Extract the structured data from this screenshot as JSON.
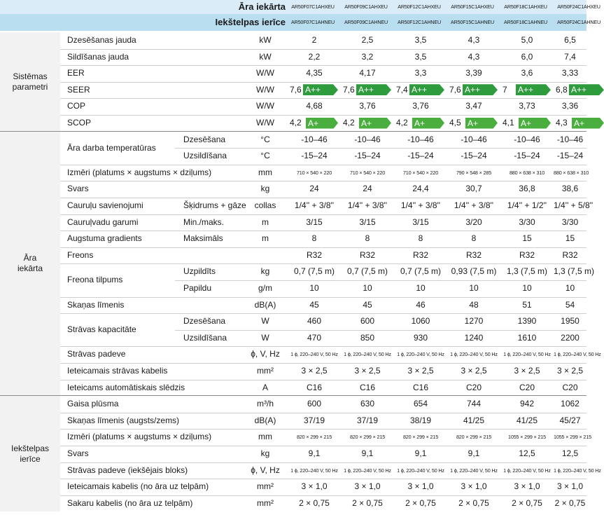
{
  "header": {
    "outdoor_label": "Āra iekārta",
    "indoor_label": "Iekštelpas ierīce",
    "outdoor_models": [
      "AR50F07C1AHXEU",
      "AR50F09C1AHXEU",
      "AR50F12C1AHXEU",
      "AR50F15C1AHXEU",
      "AR50F18C1AHXEU",
      "AR50F24C1AHXEU"
    ],
    "indoor_models": [
      "AR50F07C1AHNEU",
      "AR50F09C1AHNEU",
      "AR50F12C1AHNEU",
      "AR50F15C1AHNEU",
      "AR50F18C1AHNEU",
      "AR50F24C1AHNEU"
    ]
  },
  "groups": [
    {
      "label": "Sistēmas\nparametri"
    },
    {
      "label": "Āra\niekārta"
    },
    {
      "label": "Iekštelpas\nierīce"
    }
  ],
  "rows": [
    {
      "label": "Dzesēšanas jauda",
      "sub": "",
      "unit": "kW",
      "values": [
        "2",
        "2,5",
        "3,5",
        "4,3",
        "5,0",
        "6,5"
      ]
    },
    {
      "label": "Sildīšanas jauda",
      "sub": "",
      "unit": "kW",
      "values": [
        "2,2",
        "3,2",
        "3,5",
        "4,3",
        "6,0",
        "7,4"
      ]
    },
    {
      "label": "EER",
      "sub": "",
      "unit": "W/W",
      "values": [
        "4,35",
        "4,17",
        "3,3",
        "3,39",
        "3,6",
        "3,33"
      ]
    },
    {
      "label": "SEER",
      "sub": "",
      "unit": "W/W",
      "values": [
        "7,6",
        "7,6",
        "7,4",
        "7,6",
        "7",
        "6,8"
      ],
      "badges": [
        "A++",
        "A++",
        "A++",
        "A++",
        "A++",
        "A++"
      ]
    },
    {
      "label": "COP",
      "sub": "",
      "unit": "W/W",
      "values": [
        "4,68",
        "3,76",
        "3,76",
        "3,47",
        "3,73",
        "3,36"
      ]
    },
    {
      "label": "SCOP",
      "sub": "",
      "unit": "W/W",
      "values": [
        "4,2",
        "4,2",
        "4,2",
        "4,5",
        "4,1",
        "4,3"
      ],
      "badges": [
        "A+",
        "A+",
        "A+",
        "A+",
        "A+",
        "A+"
      ]
    },
    {
      "label": "Āra darba temperatūras",
      "sub": "Dzesēšana",
      "unit": "°C",
      "values": [
        "-10–46",
        "-10–46",
        "-10–46",
        "-10–46",
        "-10–46",
        "-10–46"
      ]
    },
    {
      "label": "",
      "sub": "Uzsildīšana",
      "unit": "°C",
      "values": [
        "-15–24",
        "-15–24",
        "-15–24",
        "-15–24",
        "-15–24",
        "-15–24"
      ]
    },
    {
      "label": "Izmēri (platums × augstums × dziļums)",
      "sub": "",
      "unit": "mm",
      "values": [
        "710 × 540 × 220",
        "710 × 540 × 220",
        "710 × 540 × 220",
        "790 × 548 × 285",
        "880 × 638 × 310",
        "880 × 638 × 310"
      ]
    },
    {
      "label": "Svars",
      "sub": "",
      "unit": "kg",
      "values": [
        "24",
        "24",
        "24,4",
        "30,7",
        "36,8",
        "38,6"
      ]
    },
    {
      "label": "Cauruļu savienojumi",
      "sub": "Šķidrums + gāze",
      "unit": "collas",
      "values": [
        "1/4'' + 3/8''",
        "1/4'' + 3/8''",
        "1/4'' + 3/8''",
        "1/4'' + 3/8''",
        "1/4'' + 1/2''",
        "1/4'' + 5/8''"
      ]
    },
    {
      "label": "Cauruļvadu garumi",
      "sub": "Min./maks.",
      "unit": "m",
      "values": [
        "3/15",
        "3/15",
        "3/15",
        "3/20",
        "3/30",
        "3/30"
      ]
    },
    {
      "label": "Augstuma gradients",
      "sub": "Maksimāls",
      "unit": "m",
      "values": [
        "8",
        "8",
        "8",
        "8",
        "15",
        "15"
      ]
    },
    {
      "label": "Freons",
      "sub": "",
      "unit": "",
      "values": [
        "R32",
        "R32",
        "R32",
        "R32",
        "R32",
        "R32"
      ]
    },
    {
      "label": "Freona tilpums",
      "sub": "Uzpildīts",
      "unit": "kg",
      "values": [
        "0,7 (7,5 m)",
        "0,7 (7,5 m)",
        "0,7 (7,5 m)",
        "0,93 (7,5 m)",
        "1,3 (7,5 m)",
        "1,3 (7,5 m)"
      ]
    },
    {
      "label": "",
      "sub": "Papildu",
      "unit": "g/m",
      "values": [
        "10",
        "10",
        "10",
        "10",
        "10",
        "10"
      ]
    },
    {
      "label": "Skaņas līmenis",
      "sub": "",
      "unit": "dB(A)",
      "values": [
        "45",
        "45",
        "46",
        "48",
        "51",
        "54"
      ]
    },
    {
      "label": "Strāvas kapacitāte",
      "sub": "Dzesēšana",
      "unit": "W",
      "values": [
        "460",
        "600",
        "1060",
        "1270",
        "1390",
        "1950"
      ]
    },
    {
      "label": "",
      "sub": "Uzsildīšana",
      "unit": "W",
      "values": [
        "470",
        "850",
        "930",
        "1240",
        "1610",
        "2200"
      ]
    },
    {
      "label": "Strāvas padeve",
      "sub": "",
      "unit": "ϕ, V, Hz",
      "values": [
        "1 ϕ, 220–240 V, 50 Hz",
        "1 ϕ, 220–240 V, 50 Hz",
        "1 ϕ, 220–240 V, 50 Hz",
        "1 ϕ, 220–240 V, 50 Hz",
        "1 ϕ, 220–240 V, 50 Hz",
        "1 ϕ, 220–240 V, 50 Hz"
      ]
    },
    {
      "label": "Ieteicamais strāvas kabelis",
      "sub": "",
      "unit": "mm²",
      "values": [
        "3 × 2,5",
        "3 × 2,5",
        "3 × 2,5",
        "3 × 2,5",
        "3 × 2,5",
        "3 × 2,5"
      ]
    },
    {
      "label": "Ieteicams automātiskais slēdzis",
      "sub": "",
      "unit": "A",
      "values": [
        "C16",
        "C16",
        "C16",
        "C20",
        "C20",
        "C20"
      ]
    },
    {
      "label": "Gaisa plūsma",
      "sub": "",
      "unit": "m³/h",
      "values": [
        "600",
        "630",
        "654",
        "744",
        "942",
        "1062"
      ]
    },
    {
      "label": "Skaņas līmenis (augsts/zems)",
      "sub": "",
      "unit": "dB(A)",
      "values": [
        "37/19",
        "37/19",
        "38/19",
        "41/25",
        "41/25",
        "45/27"
      ]
    },
    {
      "label": "Izmēri (platums × augstums × dziļums)",
      "sub": "",
      "unit": "mm",
      "values": [
        "820 × 299 × 215",
        "820 × 299 × 215",
        "820 × 299 × 215",
        "820 × 299 × 215",
        "1055 × 299 × 215",
        "1055 × 299 × 215"
      ]
    },
    {
      "label": "Svars",
      "sub": "",
      "unit": "kg",
      "values": [
        "9,1",
        "9,1",
        "9,1",
        "9,1",
        "12,5",
        "12,5"
      ]
    },
    {
      "label": "Strāvas padeve (iekšējais bloks)",
      "sub": "",
      "unit": "ϕ, V, Hz",
      "values": [
        "1 ϕ, 220–240 V, 50 Hz",
        "1 ϕ, 220–240 V, 50 Hz",
        "1 ϕ, 220–240 V, 50 Hz",
        "1 ϕ, 220–240 V, 50 Hz",
        "1 ϕ, 220–240 V, 50 Hz",
        "1 ϕ, 220–240 V, 50 Hz"
      ]
    },
    {
      "label": "Ieteicamais kabelis (no āra uz telpām)",
      "sub": "",
      "unit": "mm²",
      "values": [
        "3 × 1,0",
        "3 × 1,0",
        "3 × 1,0",
        "3 × 1,0",
        "3 × 1,0",
        "3 × 1,0"
      ]
    },
    {
      "label": "Sakaru kabelis (no āra uz telpām)",
      "sub": "",
      "unit": "mm²",
      "values": [
        "2 × 0,75",
        "2 × 0,75",
        "2 × 0,75",
        "2 × 0,75",
        "2 × 0,75",
        "2 × 0,75"
      ]
    }
  ],
  "colors": {
    "header_light": "#d9ecf7",
    "header_dark": "#b8def0",
    "badge_app": "#2e9b3c",
    "badge_ap": "#49ae3e",
    "group_bg": "#f2f2f2"
  }
}
